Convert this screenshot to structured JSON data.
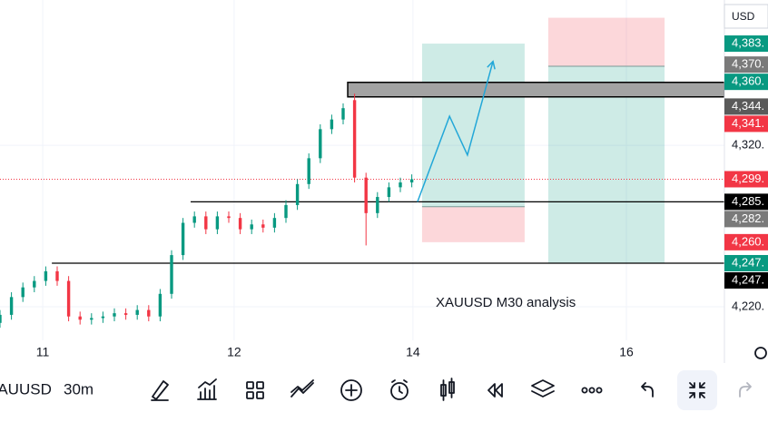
{
  "chart_data": {
    "type": "candlestick",
    "currency": "USD",
    "annotation": "XAUUSD M30 analysis",
    "symbol": "XAUUSD",
    "interval": "30m",
    "up_color": "#089981",
    "down_color": "#f23645",
    "xlim": [
      0,
      190
    ],
    "ylim": [
      4200,
      4410
    ],
    "xticks": [
      {
        "value": 11.2,
        "label": "11"
      },
      {
        "value": 61.4,
        "label": "12"
      },
      {
        "value": 108.3,
        "label": "14"
      },
      {
        "value": 164.3,
        "label": "16"
      }
    ],
    "yticks": [
      {
        "value": 4320,
        "label": "4,320."
      },
      {
        "value": 4220,
        "label": "4,220."
      }
    ],
    "grid": true,
    "x": [
      0,
      3,
      6,
      9,
      12,
      15,
      18,
      21,
      24,
      27,
      30,
      33,
      36,
      39,
      42,
      45,
      48,
      51,
      54,
      57,
      60,
      63,
      66,
      69,
      72,
      75,
      78,
      81,
      84,
      87,
      90,
      93,
      96,
      99,
      102,
      105,
      108
    ],
    "open": [
      4210,
      4215,
      4226,
      4232,
      4236,
      4242,
      4236,
      4214,
      4212,
      4213,
      4214,
      4216,
      4215,
      4218,
      4214,
      4228,
      4252,
      4272,
      4276,
      4268,
      4276,
      4275,
      4268,
      4271,
      4269,
      4275,
      4283,
      4296,
      4312,
      4330,
      4336,
      4348,
      4300,
      4278,
      4288,
      4294,
      4297
    ],
    "high": [
      4218,
      4229,
      4235,
      4239,
      4245,
      4245,
      4239,
      4217,
      4216,
      4217,
      4219,
      4219,
      4221,
      4221,
      4231,
      4255,
      4275,
      4279,
      4279,
      4279,
      4279,
      4278,
      4274,
      4274,
      4278,
      4286,
      4299,
      4315,
      4333,
      4339,
      4346,
      4352,
      4303,
      4291,
      4297,
      4300,
      4302
    ],
    "low": [
      4207,
      4212,
      4223,
      4229,
      4233,
      4233,
      4211,
      4209,
      4209,
      4210,
      4211,
      4212,
      4212,
      4211,
      4211,
      4225,
      4249,
      4269,
      4265,
      4265,
      4272,
      4265,
      4265,
      4266,
      4266,
      4272,
      4280,
      4293,
      4309,
      4327,
      4333,
      4297,
      4258,
      4275,
      4285,
      4291,
      4294
    ],
    "close": [
      4215,
      4226,
      4232,
      4236,
      4242,
      4236,
      4214,
      4212,
      4213,
      4214,
      4216,
      4215,
      4218,
      4214,
      4228,
      4252,
      4272,
      4276,
      4268,
      4276,
      4275,
      4268,
      4271,
      4269,
      4275,
      4283,
      4296,
      4312,
      4330,
      4336,
      4343,
      4300,
      4278,
      4288,
      4294,
      4297,
      4299
    ],
    "price_labels": [
      {
        "value": 4383,
        "label": "4,383.",
        "color": "#089981"
      },
      {
        "value": 4370,
        "label": "4,370.",
        "color": "#7a7a7a"
      },
      {
        "value": 4360,
        "label": "4,360.",
        "color": "#089981"
      },
      {
        "value": 4344,
        "label": "4,344.",
        "color": "#5a5a5a"
      },
      {
        "value": 4341,
        "label": "4,341.",
        "color": "#f23645"
      },
      {
        "value": 4299,
        "label": "4,299.",
        "color": "#f23645"
      },
      {
        "value": 4285,
        "label": "4,285.",
        "color": "#000000"
      },
      {
        "value": 4282,
        "label": "4,282.",
        "color": "#7a7a7a"
      },
      {
        "value": 4260,
        "label": "4,260.",
        "color": "#f23645"
      },
      {
        "value": 4247,
        "label": "4,247.",
        "color": "#089981"
      },
      {
        "value": 4247,
        "label": "4,247.",
        "color": "#000000"
      }
    ],
    "current_price": 4299,
    "levels": [
      {
        "value": 4285,
        "x": [
          50,
          190
        ]
      },
      {
        "value": 4247,
        "x": [
          13.6,
          190
        ]
      }
    ],
    "zone": {
      "x": [
        91.2,
        190
      ],
      "y": [
        4350,
        4359
      ]
    },
    "positions": [
      {
        "x": [
          110.7,
          137.6
        ],
        "entry": 4282,
        "target": 4383,
        "stop": 4260
      },
      {
        "x": [
          143.8,
          174.3
        ],
        "entry": 4369,
        "target": 4247,
        "stop": 4399
      }
    ],
    "arrow": {
      "x": [
        109.5,
        117.9,
        122.6,
        129.3
      ],
      "y": [
        4285,
        4338,
        4314,
        4372
      ]
    }
  }
}
